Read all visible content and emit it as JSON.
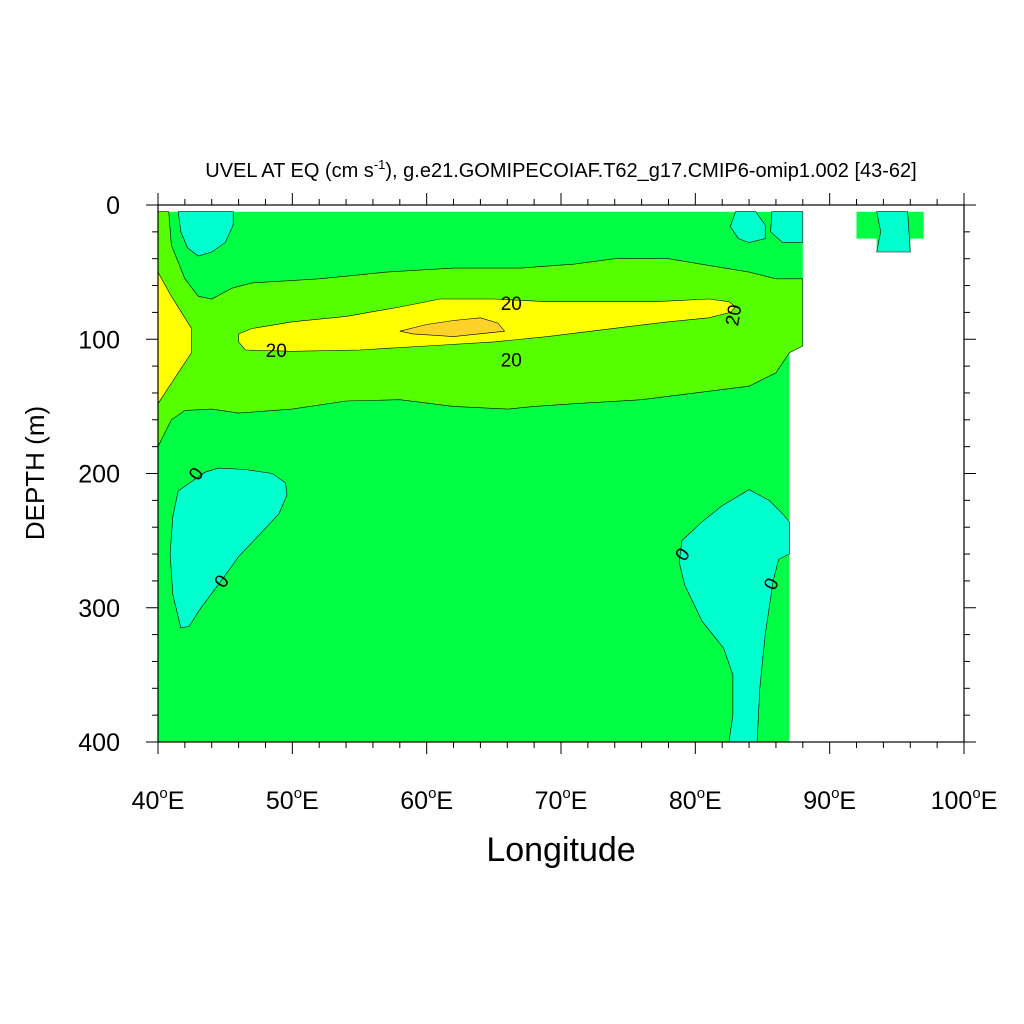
{
  "chart_data": {
    "type": "contour",
    "title": "UVEL AT EQ (cm s",
    "title_unit_exponent": "-1",
    "title_rest": "), g.e21.GOMIPECOIAF.T62_g17.CMIP6-omip1.002 [43-62]",
    "xlabel": "Longitude",
    "ylabel": "DEPTH (m)",
    "xlim": [
      40,
      100
    ],
    "ylim": [
      0,
      400
    ],
    "y_inverted": true,
    "x_ticks": [
      {
        "num": "40",
        "deg": "o",
        "hemi": "E",
        "value": 40
      },
      {
        "num": "50",
        "deg": "o",
        "hemi": "E",
        "value": 50
      },
      {
        "num": "60",
        "deg": "o",
        "hemi": "E",
        "value": 60
      },
      {
        "num": "70",
        "deg": "o",
        "hemi": "E",
        "value": 70
      },
      {
        "num": "80",
        "deg": "o",
        "hemi": "E",
        "value": 80
      },
      {
        "num": "90",
        "deg": "o",
        "hemi": "E",
        "value": 90
      },
      {
        "num": "100",
        "deg": "o",
        "hemi": "E",
        "value": 100
      }
    ],
    "y_ticks": [
      {
        "label": "0",
        "value": 0
      },
      {
        "label": "100",
        "value": 100
      },
      {
        "label": "200",
        "value": 200
      },
      {
        "label": "300",
        "value": 300
      },
      {
        "label": "400",
        "value": 400
      }
    ],
    "fill_colors": {
      "negative": "#00ffcc",
      "zero_to_10": "#00ff44",
      "ten_to_20": "#55ff00",
      "twenty_to_30": "#ffff00",
      "above_30": "#ffd22a"
    },
    "contour_labels": [
      {
        "text": "20",
        "lon": 66.3,
        "depth": 73,
        "rotate": 0
      },
      {
        "text": "20",
        "lon": 48.8,
        "depth": 108,
        "rotate": 0
      },
      {
        "text": "20",
        "lon": 66.3,
        "depth": 115,
        "rotate": 0
      },
      {
        "text": "20",
        "lon": 82.8,
        "depth": 82,
        "rotate": -80
      },
      {
        "text": "0",
        "lon": 42.8,
        "depth": 200,
        "rotate": -55
      },
      {
        "text": "0",
        "lon": 44.7,
        "depth": 280,
        "rotate": -55
      },
      {
        "text": "0",
        "lon": 79.0,
        "depth": 260,
        "rotate": -55
      },
      {
        "text": "0",
        "lon": 85.6,
        "depth": 282,
        "rotate": -65
      }
    ],
    "regions": [
      {
        "name": "zero-to-10-field",
        "level": "zero_to_10",
        "points": [
          [
            40,
            5
          ],
          [
            88,
            5
          ],
          [
            88,
            105
          ],
          [
            87,
            105
          ],
          [
            87,
            400
          ],
          [
            40,
            400
          ]
        ]
      },
      {
        "name": "zero-to-10-east-patch",
        "level": "zero_to_10",
        "points": [
          [
            92,
            5
          ],
          [
            97,
            5
          ],
          [
            97,
            25
          ],
          [
            96,
            25
          ],
          [
            96,
            35
          ],
          [
            93.5,
            35
          ],
          [
            93.5,
            25
          ],
          [
            92,
            25
          ]
        ]
      },
      {
        "name": "ten-to-20-band",
        "level": "ten_to_20",
        "points": [
          [
            40,
            5
          ],
          [
            40.8,
            5
          ],
          [
            41,
            30
          ],
          [
            42,
            55
          ],
          [
            43,
            68
          ],
          [
            44,
            70
          ],
          [
            45.5,
            62
          ],
          [
            47,
            58
          ],
          [
            52,
            55
          ],
          [
            57,
            50
          ],
          [
            62,
            47
          ],
          [
            67,
            47
          ],
          [
            71,
            44
          ],
          [
            74,
            40
          ],
          [
            78,
            40
          ],
          [
            81,
            45
          ],
          [
            84,
            50
          ],
          [
            86,
            55
          ],
          [
            88,
            55
          ],
          [
            88,
            105
          ],
          [
            87,
            110
          ],
          [
            86,
            125
          ],
          [
            84,
            135
          ],
          [
            80,
            140
          ],
          [
            76,
            145
          ],
          [
            71,
            148
          ],
          [
            68,
            150
          ],
          [
            66,
            152
          ],
          [
            62,
            150
          ],
          [
            58,
            145
          ],
          [
            54,
            146
          ],
          [
            50,
            152
          ],
          [
            46,
            155
          ],
          [
            44,
            152
          ],
          [
            42,
            153
          ],
          [
            41,
            160
          ],
          [
            40,
            180
          ]
        ]
      },
      {
        "name": "twenty-to-30-core",
        "level": "twenty_to_30",
        "points": [
          [
            46,
            96
          ],
          [
            47,
            92
          ],
          [
            50,
            87
          ],
          [
            54,
            83
          ],
          [
            58,
            76
          ],
          [
            61,
            70
          ],
          [
            65,
            70
          ],
          [
            69,
            72
          ],
          [
            73,
            72
          ],
          [
            77,
            72
          ],
          [
            81,
            70
          ],
          [
            82.5,
            72
          ],
          [
            83,
            76
          ],
          [
            82.6,
            80
          ],
          [
            81,
            84
          ],
          [
            78,
            87
          ],
          [
            73,
            93
          ],
          [
            69,
            98
          ],
          [
            65,
            102
          ],
          [
            60,
            105
          ],
          [
            55,
            108
          ],
          [
            50,
            109
          ],
          [
            46.5,
            108
          ],
          [
            46,
            102
          ]
        ]
      },
      {
        "name": "twenty-to-30-west",
        "level": "twenty_to_30",
        "points": [
          [
            40,
            50
          ],
          [
            41,
            68
          ],
          [
            42.5,
            92
          ],
          [
            42.5,
            110
          ],
          [
            41.5,
            125
          ],
          [
            40,
            148
          ]
        ]
      },
      {
        "name": "above-30-core",
        "level": "above_30",
        "points": [
          [
            58,
            94
          ],
          [
            60,
            89
          ],
          [
            62,
            86
          ],
          [
            64,
            84
          ],
          [
            65.3,
            88
          ],
          [
            65.8,
            94
          ],
          [
            62,
            98
          ],
          [
            59,
            96
          ]
        ]
      },
      {
        "name": "negative-patch-northwest",
        "level": "negative",
        "points": [
          [
            41.5,
            5
          ],
          [
            45.6,
            5
          ],
          [
            45.6,
            15
          ],
          [
            45,
            28
          ],
          [
            44,
            35
          ],
          [
            43,
            38
          ],
          [
            42.2,
            32
          ],
          [
            41.7,
            20
          ]
        ]
      },
      {
        "name": "negative-patch-northeast-1",
        "level": "negative",
        "points": [
          [
            83,
            5
          ],
          [
            84.5,
            5
          ],
          [
            85.2,
            15
          ],
          [
            85.2,
            25
          ],
          [
            84,
            28
          ],
          [
            83.2,
            25
          ],
          [
            82.6,
            16
          ]
        ]
      },
      {
        "name": "negative-patch-northeast-2",
        "level": "negative",
        "points": [
          [
            85.7,
            5
          ],
          [
            88,
            5
          ],
          [
            88,
            28
          ],
          [
            86.5,
            28
          ],
          [
            85.6,
            20
          ]
        ]
      },
      {
        "name": "negative-patch-east-strait",
        "level": "negative",
        "points": [
          [
            93.5,
            5
          ],
          [
            95.8,
            5
          ],
          [
            96,
            35
          ],
          [
            93.5,
            35
          ],
          [
            93.8,
            20
          ]
        ]
      },
      {
        "name": "negative-patch-west-deep",
        "level": "negative",
        "points": [
          [
            41.5,
            213
          ],
          [
            42.5,
            206
          ],
          [
            43.5,
            199
          ],
          [
            44.5,
            196
          ],
          [
            46.5,
            197
          ],
          [
            48.5,
            200
          ],
          [
            49.5,
            207
          ],
          [
            49.6,
            216
          ],
          [
            49,
            230
          ],
          [
            47.5,
            246
          ],
          [
            46,
            262
          ],
          [
            44.7,
            280
          ],
          [
            43.2,
            300
          ],
          [
            42.3,
            314
          ],
          [
            41.7,
            315
          ],
          [
            41.1,
            290
          ],
          [
            40.9,
            260
          ],
          [
            41.1,
            232
          ]
        ]
      },
      {
        "name": "negative-patch-east-deep",
        "level": "negative",
        "points": [
          [
            79,
            250
          ],
          [
            80.5,
            236
          ],
          [
            82,
            224
          ],
          [
            84,
            212
          ],
          [
            85.5,
            220
          ],
          [
            86.5,
            230
          ],
          [
            87,
            236
          ],
          [
            87,
            260
          ],
          [
            86.2,
            264
          ],
          [
            85.8,
            280
          ],
          [
            85.2,
            320
          ],
          [
            84.8,
            360
          ],
          [
            84.6,
            400
          ],
          [
            82.5,
            400
          ],
          [
            82.8,
            380
          ],
          [
            82.8,
            350
          ],
          [
            82.1,
            330
          ],
          [
            80.5,
            310
          ],
          [
            79.2,
            283
          ],
          [
            78.8,
            266
          ]
        ]
      }
    ]
  }
}
